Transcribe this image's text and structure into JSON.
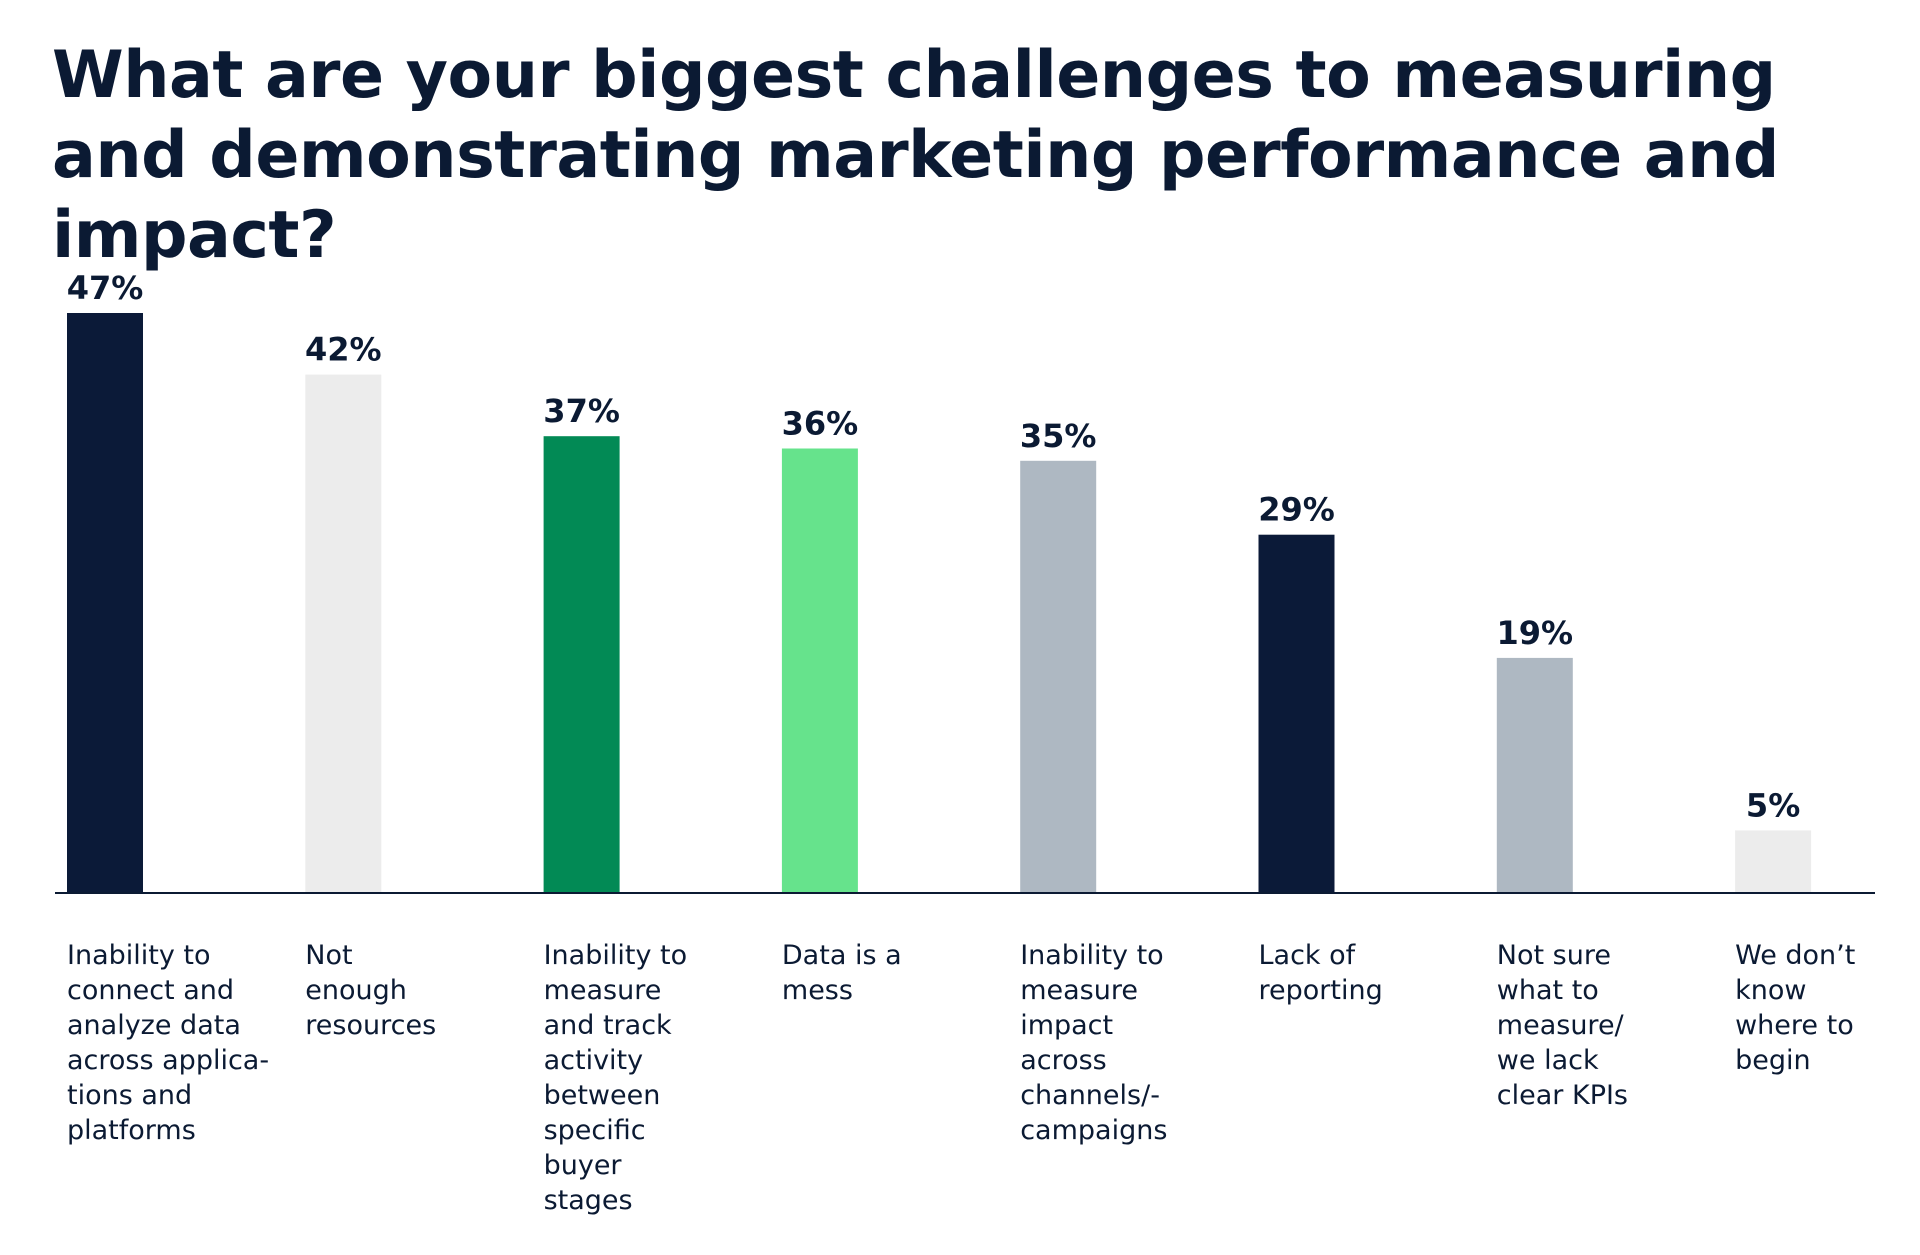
{
  "chart_data": {
    "type": "bar",
    "title": "What are your biggest challenges to measuring and demonstrating marketing performance and impact?",
    "categories": [
      "Inability to\nconnect and\nanalyze data\nacross applica-\ntions and\nplatforms",
      "Not\nenough\nresources",
      "Inability to\nmeasure\nand track\nactivity\nbetween\nspecific\nbuyer\nstages",
      "Data is a\nmess",
      "Inability to\nmeasure\nimpact\nacross\nchannels/-\ncampaigns",
      "Lack of\nreporting",
      "Not sure\nwhat to\nmeasure/\nwe lack\nclear KPIs",
      "We don’t\nknow\nwhere to\nbegin"
    ],
    "values": [
      47,
      42,
      37,
      36,
      35,
      29,
      19,
      5
    ],
    "value_labels": [
      "47%",
      "42%",
      "37%",
      "36%",
      "35%",
      "29%",
      "19%",
      "5%"
    ],
    "colors": [
      "#0b1a38",
      "#ececec",
      "#028a55",
      "#66e38c",
      "#aeb8c2",
      "#0b1a38",
      "#aeb8c2",
      "#ececec"
    ],
    "ylim": [
      0,
      47
    ],
    "grid": false,
    "legend": "none",
    "xlabel": "",
    "ylabel": ""
  }
}
